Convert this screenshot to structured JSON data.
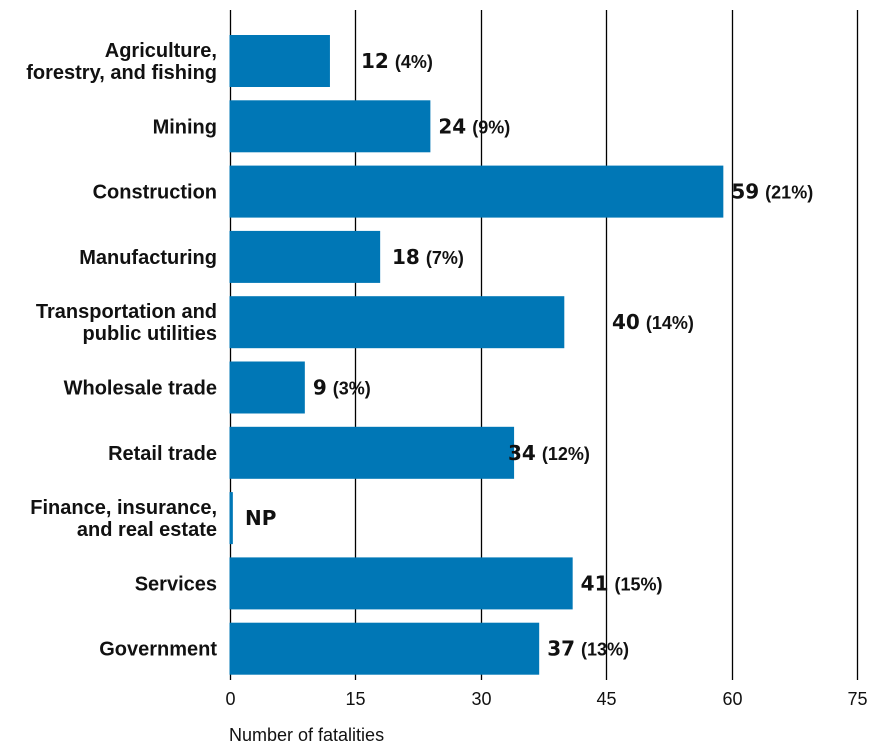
{
  "chart_data": {
    "type": "bar",
    "orientation": "horizontal",
    "categories": [
      [
        "Agriculture,",
        "forestry, and fishing"
      ],
      [
        "Mining"
      ],
      [
        "Construction"
      ],
      [
        "Manufacturing"
      ],
      [
        "Transportation and",
        "public utilities"
      ],
      [
        "Wholesale trade"
      ],
      [
        "Retail trade"
      ],
      [
        "Finance, insurance,",
        "and real estate"
      ],
      [
        "Services"
      ],
      [
        "Government"
      ]
    ],
    "values": [
      12,
      24,
      59,
      18,
      40,
      9,
      34,
      null,
      41,
      37
    ],
    "value_labels": [
      "12",
      "24",
      "59",
      "18",
      "40",
      "9",
      "34",
      "NP",
      "41",
      "37"
    ],
    "percent_labels": [
      "(4%)",
      "(9%)",
      "(21%)",
      "(7%)",
      "(14%)",
      "(3%)",
      "(12%)",
      "",
      "(15%)",
      "(13%)"
    ],
    "xlabel": "Number of fatalities",
    "ylabel": "",
    "xlim": [
      0,
      75
    ],
    "xticks": [
      0,
      15,
      30,
      45,
      60,
      75
    ],
    "grid": "vertical",
    "bar_color": "#0077b6",
    "grid_color": "#000000"
  }
}
